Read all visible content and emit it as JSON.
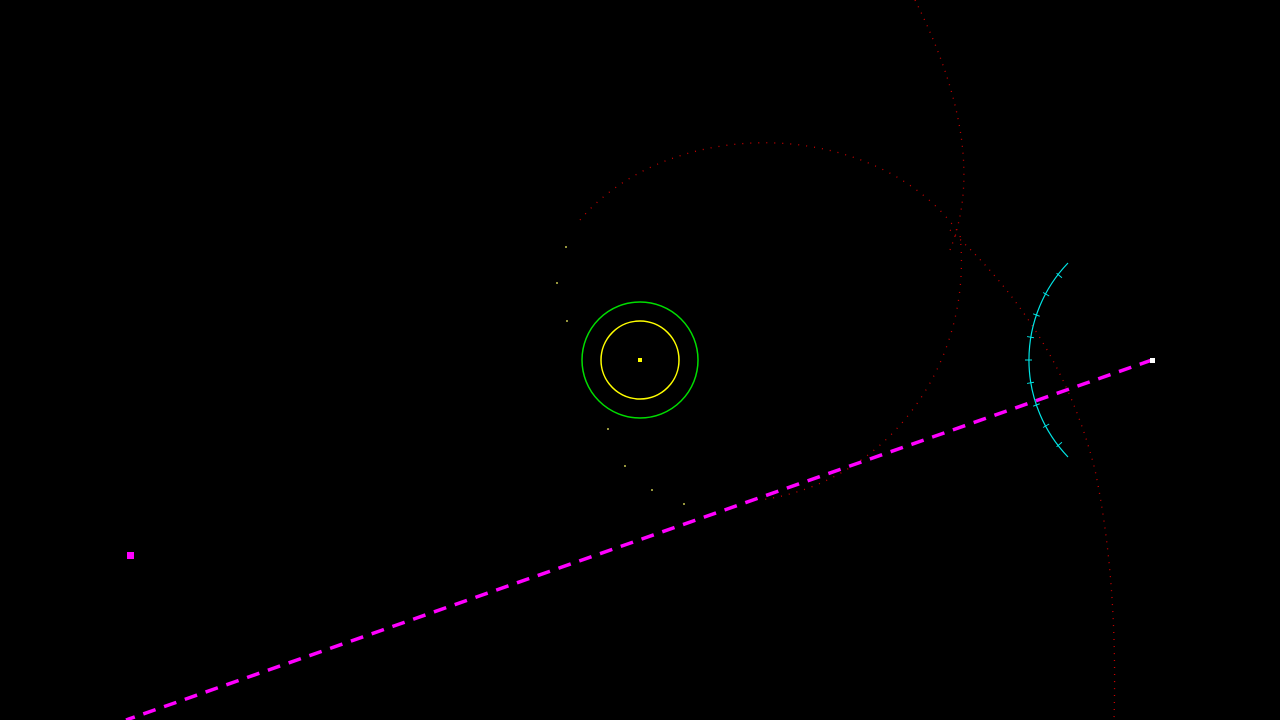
{
  "scene": {
    "background_color": "#000000",
    "star": {
      "color": "#ffff00"
    },
    "planet_orbit": {
      "color": "#ffff00"
    },
    "planet_shield": {
      "color": "#00dd00"
    },
    "predicted_trajectory": {
      "color": "#cc0000",
      "style": "dotted"
    },
    "target_path": {
      "color": "#ff00ff",
      "style": "dashed"
    },
    "target_marker": {
      "color": "#ff00ff"
    },
    "ship": {
      "color": "#ffffff"
    },
    "aim_arc": {
      "color": "#00e5e5",
      "tick_count": 9
    },
    "debris_dots": {
      "color": "#ffff66"
    }
  }
}
